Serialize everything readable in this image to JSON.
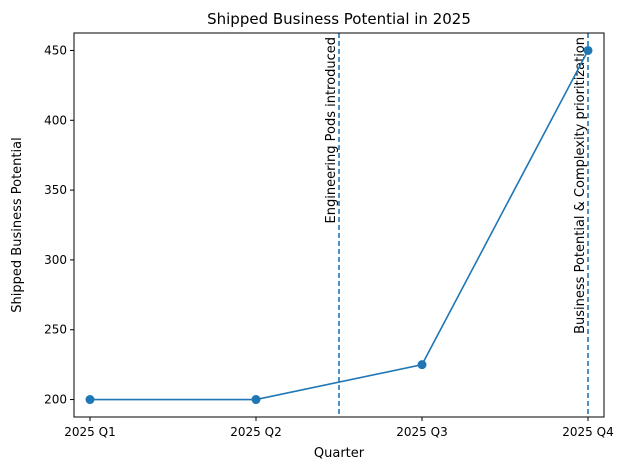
{
  "chart_data": {
    "type": "line",
    "title": "Shipped Business Potential in 2025",
    "xlabel": "Quarter",
    "ylabel": "Shipped Business Potential",
    "categories": [
      "2025 Q1",
      "2025 Q2",
      "2025 Q3",
      "2025 Q4"
    ],
    "series": [
      {
        "values": [
          200,
          200,
          225,
          450
        ],
        "color": "#1f77b4",
        "marker": "circle"
      }
    ],
    "ylim": [
      187.5,
      462.5
    ],
    "yticks": [
      200,
      250,
      300,
      350,
      400,
      450
    ],
    "grid": false,
    "annotations": [
      {
        "x": 1.5,
        "label": "Engineering Pods introduced",
        "style": "dashed-vertical-line",
        "color": "#1f77b4"
      },
      {
        "x": 3,
        "label": "Business Potential & Complexity prioritization",
        "style": "dashed-vertical-line",
        "color": "#1f77b4"
      }
    ]
  }
}
